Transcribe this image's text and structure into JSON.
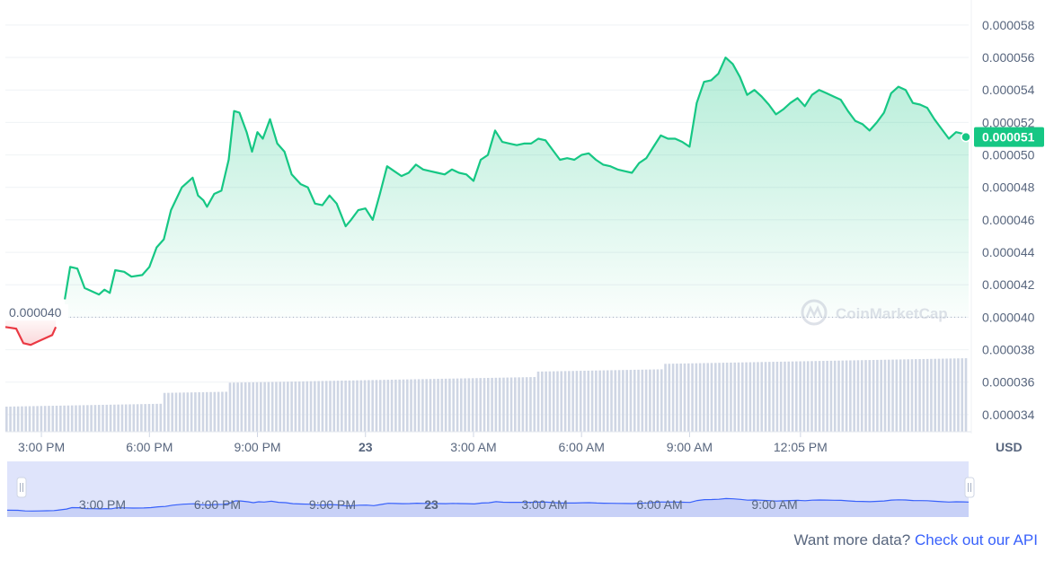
{
  "chart_data": {
    "type": "area",
    "currency": "USD",
    "ylim": [
      3.3e-05,
      5.91e-05
    ],
    "y_ticks": [
      "0.000058",
      "0.000056",
      "0.000054",
      "0.000052",
      "0.000050",
      "0.000048",
      "0.000046",
      "0.000044",
      "0.000042",
      "0.000040",
      "0.000038",
      "0.000036",
      "0.000034"
    ],
    "x_ticks": [
      "3:00 PM",
      "6:00 PM",
      "9:00 PM",
      "23",
      "3:00 AM",
      "6:00 AM",
      "9:00 AM",
      "12:05 PM"
    ],
    "baseline_label": "0.000040",
    "baseline_value": 4e-05,
    "current_price_label": "0.000051",
    "current_price": 5.11e-05,
    "grid": true,
    "colors": {
      "up": "#16c784",
      "down": "#ea3943",
      "axis_text": "#58667e",
      "navigator_fill": "#dfe4fb",
      "navigator_line": "#3861fb",
      "volume": "#cfd6e4"
    },
    "x_range": [
      0,
      26.75
    ],
    "x_unit": "hours after 2:00 PM",
    "series": [
      {
        "values": [
          [
            0.0,
            3.94e-05
          ],
          [
            0.3,
            3.93e-05
          ],
          [
            0.5,
            3.84e-05
          ],
          [
            0.7,
            3.83e-05
          ],
          [
            0.9,
            3.85e-05
          ],
          [
            1.1,
            3.87e-05
          ],
          [
            1.3,
            3.89e-05
          ],
          [
            1.4,
            3.94e-05
          ],
          [
            1.65,
            4.11e-05
          ],
          [
            1.8,
            4.31e-05
          ],
          [
            2.0,
            4.3e-05
          ],
          [
            2.2,
            4.18e-05
          ],
          [
            2.4,
            4.16e-05
          ],
          [
            2.6,
            4.14e-05
          ],
          [
            2.75,
            4.17e-05
          ],
          [
            2.9,
            4.15e-05
          ],
          [
            3.05,
            4.29e-05
          ],
          [
            3.3,
            4.28e-05
          ],
          [
            3.5,
            4.25e-05
          ],
          [
            3.8,
            4.26e-05
          ],
          [
            4.0,
            4.31e-05
          ],
          [
            4.2,
            4.43e-05
          ],
          [
            4.4,
            4.48e-05
          ],
          [
            4.6,
            4.66e-05
          ],
          [
            4.9,
            4.8e-05
          ],
          [
            5.2,
            4.86e-05
          ],
          [
            5.35,
            4.75e-05
          ],
          [
            5.5,
            4.72e-05
          ],
          [
            5.6,
            4.68e-05
          ],
          [
            5.8,
            4.76e-05
          ],
          [
            6.0,
            4.78e-05
          ],
          [
            6.2,
            4.97e-05
          ],
          [
            6.35,
            5.27e-05
          ],
          [
            6.5,
            5.26e-05
          ],
          [
            6.7,
            5.14e-05
          ],
          [
            6.85,
            5.02e-05
          ],
          [
            7.0,
            5.14e-05
          ],
          [
            7.15,
            5.1e-05
          ],
          [
            7.35,
            5.22e-05
          ],
          [
            7.55,
            5.07e-05
          ],
          [
            7.75,
            5.02e-05
          ],
          [
            7.95,
            4.88e-05
          ],
          [
            8.2,
            4.82e-05
          ],
          [
            8.4,
            4.8e-05
          ],
          [
            8.6,
            4.7e-05
          ],
          [
            8.8,
            4.69e-05
          ],
          [
            9.0,
            4.75e-05
          ],
          [
            9.2,
            4.7e-05
          ],
          [
            9.45,
            4.56e-05
          ],
          [
            9.6,
            4.6e-05
          ],
          [
            9.8,
            4.66e-05
          ],
          [
            10.0,
            4.67e-05
          ],
          [
            10.2,
            4.6e-05
          ],
          [
            10.4,
            4.76e-05
          ],
          [
            10.6,
            4.93e-05
          ],
          [
            10.8,
            4.9e-05
          ],
          [
            11.0,
            4.87e-05
          ],
          [
            11.2,
            4.89e-05
          ],
          [
            11.4,
            4.94e-05
          ],
          [
            11.6,
            4.91e-05
          ],
          [
            11.8,
            4.9e-05
          ],
          [
            12.0,
            4.89e-05
          ],
          [
            12.2,
            4.88e-05
          ],
          [
            12.4,
            4.91e-05
          ],
          [
            12.6,
            4.89e-05
          ],
          [
            12.8,
            4.88e-05
          ],
          [
            13.0,
            4.84e-05
          ],
          [
            13.2,
            4.97e-05
          ],
          [
            13.4,
            5e-05
          ],
          [
            13.6,
            5.15e-05
          ],
          [
            13.8,
            5.08e-05
          ],
          [
            14.0,
            5.07e-05
          ],
          [
            14.2,
            5.06e-05
          ],
          [
            14.4,
            5.07e-05
          ],
          [
            14.6,
            5.07e-05
          ],
          [
            14.8,
            5.1e-05
          ],
          [
            15.0,
            5.09e-05
          ],
          [
            15.2,
            5.03e-05
          ],
          [
            15.4,
            4.97e-05
          ],
          [
            15.6,
            4.98e-05
          ],
          [
            15.8,
            4.97e-05
          ],
          [
            16.0,
            5e-05
          ],
          [
            16.2,
            5.01e-05
          ],
          [
            16.4,
            4.97e-05
          ],
          [
            16.6,
            4.94e-05
          ],
          [
            16.8,
            4.93e-05
          ],
          [
            17.0,
            4.91e-05
          ],
          [
            17.2,
            4.9e-05
          ],
          [
            17.4,
            4.89e-05
          ],
          [
            17.6,
            4.95e-05
          ],
          [
            17.8,
            4.98e-05
          ],
          [
            18.0,
            5.05e-05
          ],
          [
            18.2,
            5.12e-05
          ],
          [
            18.4,
            5.1e-05
          ],
          [
            18.6,
            5.1e-05
          ],
          [
            18.8,
            5.08e-05
          ],
          [
            19.0,
            5.05e-05
          ],
          [
            19.2,
            5.32e-05
          ],
          [
            19.4,
            5.45e-05
          ],
          [
            19.6,
            5.46e-05
          ],
          [
            19.8,
            5.5e-05
          ],
          [
            20.0,
            5.6e-05
          ],
          [
            20.2,
            5.56e-05
          ],
          [
            20.4,
            5.48e-05
          ],
          [
            20.6,
            5.37e-05
          ],
          [
            20.8,
            5.4e-05
          ],
          [
            21.0,
            5.36e-05
          ],
          [
            21.2,
            5.31e-05
          ],
          [
            21.4,
            5.25e-05
          ],
          [
            21.6,
            5.28e-05
          ],
          [
            21.8,
            5.32e-05
          ],
          [
            22.0,
            5.35e-05
          ],
          [
            22.2,
            5.3e-05
          ],
          [
            22.4,
            5.37e-05
          ],
          [
            22.6,
            5.4e-05
          ],
          [
            22.8,
            5.38e-05
          ],
          [
            23.0,
            5.36e-05
          ],
          [
            23.2,
            5.34e-05
          ],
          [
            23.4,
            5.27e-05
          ],
          [
            23.6,
            5.21e-05
          ],
          [
            23.8,
            5.19e-05
          ],
          [
            24.0,
            5.15e-05
          ],
          [
            24.2,
            5.2e-05
          ],
          [
            24.4,
            5.26e-05
          ],
          [
            24.6,
            5.38e-05
          ],
          [
            24.8,
            5.42e-05
          ],
          [
            25.0,
            5.4e-05
          ],
          [
            25.2,
            5.32e-05
          ],
          [
            25.4,
            5.31e-05
          ],
          [
            25.6,
            5.29e-05
          ],
          [
            25.8,
            5.22e-05
          ],
          [
            26.0,
            5.16e-05
          ],
          [
            26.2,
            5.1e-05
          ],
          [
            26.4,
            5.14e-05
          ],
          [
            26.6,
            5.13e-05
          ],
          [
            26.75,
            5.11e-05
          ]
        ]
      }
    ]
  },
  "navigator": {
    "x_ticks": [
      "3:00 PM",
      "6:00 PM",
      "9:00 PM",
      "23",
      "3:00 AM",
      "6:00 AM",
      "9:00 AM"
    ],
    "handle_left_icon": "grip-icon",
    "handle_right_icon": "grip-icon"
  },
  "watermark": "CoinMarketCap",
  "footer": {
    "text": "Want more data?",
    "link": "Check out our API"
  }
}
